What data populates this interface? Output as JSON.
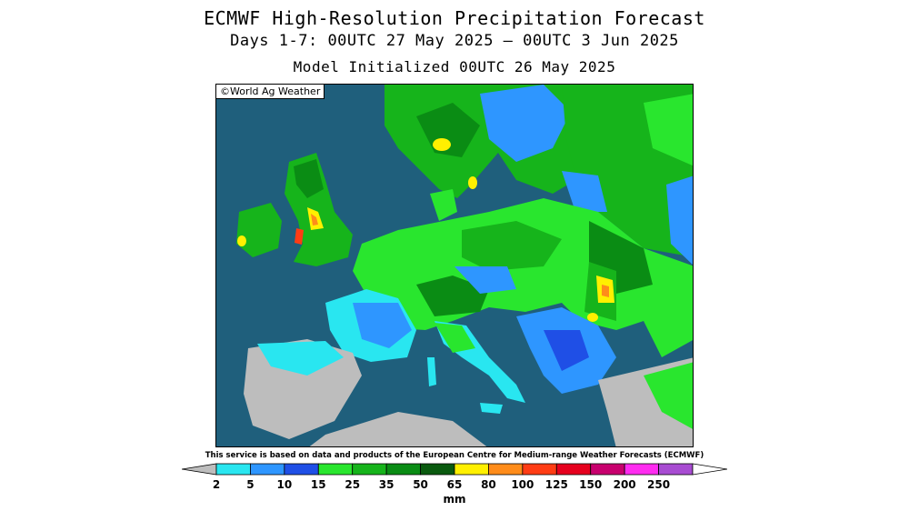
{
  "header": {
    "title": "ECMWF High-Resolution Precipitation Forecast",
    "period": "Days 1-7: 00UTC 27 May 2025 – 00UTC 3 Jun 2025",
    "init": "Model Initialized 00UTC 26 May 2025"
  },
  "map": {
    "copyright": "©World Ag Weather",
    "ocean_color": "#1f5f7c",
    "land_dry_color": "#bdbdbd"
  },
  "disclaimer": "This service is based on data and products of the European Centre for Medium-range Weather Forecasts (ECMWF)",
  "legend": {
    "unit": "mm",
    "left_arrow_color": "#bdbdbd",
    "bins": [
      {
        "color": "#29e6f0"
      },
      {
        "color": "#2e96ff"
      },
      {
        "color": "#1f4fe6"
      },
      {
        "color": "#29e62e"
      },
      {
        "color": "#16b41b"
      },
      {
        "color": "#0a8c14"
      },
      {
        "color": "#0a5a0f"
      },
      {
        "color": "#fff000"
      },
      {
        "color": "#ff8c1a"
      },
      {
        "color": "#ff3c14"
      },
      {
        "color": "#e6001e"
      },
      {
        "color": "#c8006e"
      },
      {
        "color": "#ff2cf0"
      },
      {
        "color": "#a84cd2"
      }
    ],
    "ticks": [
      "2",
      "5",
      "10",
      "15",
      "25",
      "35",
      "50",
      "65",
      "80",
      "100",
      "125",
      "150",
      "200",
      "250"
    ]
  }
}
